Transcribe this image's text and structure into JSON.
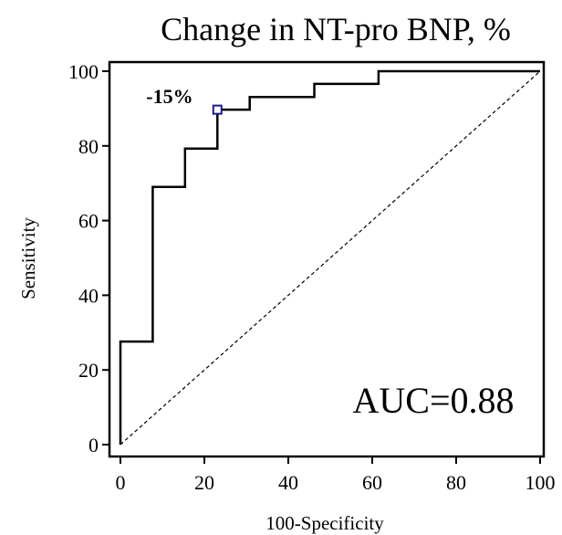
{
  "chart_data": {
    "type": "line",
    "title": "Change in NT-pro BNP, %",
    "xlabel": "100-Specificity",
    "ylabel": "Sensitivity",
    "xlim": [
      0,
      100
    ],
    "ylim": [
      0,
      100
    ],
    "xticks": [
      "0",
      "20",
      "40",
      "60",
      "80",
      "100"
    ],
    "yticks": [
      "0",
      "20",
      "40",
      "60",
      "80",
      "100"
    ],
    "series": [
      {
        "kind": "roc-step",
        "color": "#000000",
        "x": [
          0,
          0,
          7.7,
          7.7,
          15.4,
          15.4,
          23.1,
          23.1,
          30.8,
          30.8,
          46.2,
          46.2,
          61.5,
          61.5,
          100
        ],
        "y": [
          0,
          27.6,
          27.6,
          69,
          69,
          79.3,
          79.3,
          89.7,
          89.7,
          93.1,
          93.1,
          96.6,
          96.6,
          100,
          100
        ]
      },
      {
        "kind": "reference-diagonal",
        "color": "#000000",
        "dashed": true,
        "x": [
          0,
          100
        ],
        "y": [
          0,
          100
        ]
      }
    ],
    "cutoff_point": {
      "x": 23.1,
      "y": 89.7,
      "label": "-15%",
      "marker_color": "#1a1a8c"
    },
    "annotation": "AUC=0.88"
  }
}
